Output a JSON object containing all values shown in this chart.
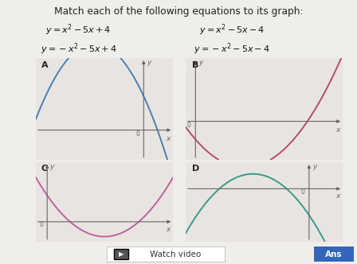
{
  "title": "Match each of the following equations to its graph:",
  "eq1": "y = x^2 - 5x + 4",
  "eq2": "y = x^2 - 5x - 4",
  "eq3": "y = -x^2 - 5x + 4",
  "eq4": "y = -x^2 - 5x - 4",
  "graphs": [
    {
      "label": "A",
      "func": "neg_x2_m5x_p4",
      "color": "#4a7fb5",
      "xlim": [
        -5.5,
        1.5
      ],
      "ylim": [
        -3.5,
        8.5
      ]
    },
    {
      "label": "B",
      "func": "pos_x2_m5x_m4",
      "color": "#b54a70",
      "xlim": [
        -0.5,
        7.5
      ],
      "ylim": [
        -8.5,
        14
      ]
    },
    {
      "label": "C",
      "func": "pos_x2_m5x_p4",
      "color": "#c060a0",
      "xlim": [
        -0.5,
        5.5
      ],
      "ylim": [
        -3,
        9
      ]
    },
    {
      "label": "D",
      "func": "neg_x2_m5x_m4",
      "color": "#3a9a8a",
      "xlim": [
        -5.5,
        1.5
      ],
      "ylim": [
        -8,
        4
      ]
    }
  ],
  "bg_color": "#f0eeeb",
  "panel_bg": "#e8e5e0",
  "axis_color": "#666666",
  "text_color": "#222222"
}
